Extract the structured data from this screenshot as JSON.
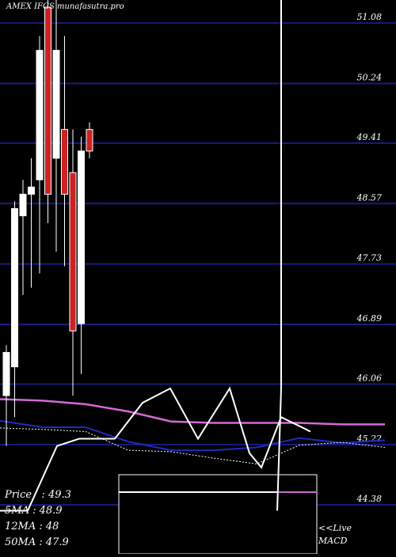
{
  "header": {
    "exchange": "AMEX",
    "symbol": "IFGS",
    "site": "munafasutra.pro"
  },
  "colors": {
    "background": "#000000",
    "grid": "#1a1a80",
    "up_candle": "#ffffff",
    "down_candle": "#cc2222",
    "wick": "#ffffff",
    "ma5": "#ffffff",
    "ma12": "#1f2bbf",
    "ma50": "#d36bd3",
    "price_line": "#ffffff",
    "macd": "#ffffff"
  },
  "legend": {
    "price": "Price   : 49.3",
    "ma5": "5MA : 48.9",
    "ma12": "12MA : 48",
    "ma50": "50MA : 47.9"
  },
  "macd_label": {
    "line1": "<<Live",
    "line2": "MACD"
  },
  "chart_data": {
    "type": "candlestick",
    "ylim": [
      43.7,
      51.4
    ],
    "y_ticks": [
      "51.08",
      "50.24",
      "49.41",
      "48.57",
      "47.73",
      "46.89",
      "46.06",
      "45.22",
      "44.38"
    ],
    "candles": [
      {
        "o": 45.9,
        "h": 46.6,
        "l": 45.2,
        "c": 46.5,
        "dir": "up"
      },
      {
        "o": 46.3,
        "h": 48.6,
        "l": 45.6,
        "c": 48.5,
        "dir": "up"
      },
      {
        "o": 48.4,
        "h": 48.9,
        "l": 47.3,
        "c": 48.7,
        "dir": "up"
      },
      {
        "o": 48.7,
        "h": 49.2,
        "l": 47.4,
        "c": 48.8,
        "dir": "up"
      },
      {
        "o": 48.9,
        "h": 50.9,
        "l": 47.6,
        "c": 50.7,
        "dir": "up"
      },
      {
        "o": 51.3,
        "h": 51.4,
        "l": 48.3,
        "c": 48.7,
        "dir": "down"
      },
      {
        "o": 49.2,
        "h": 51.4,
        "l": 47.9,
        "c": 50.7,
        "dir": "up"
      },
      {
        "o": 49.6,
        "h": 50.9,
        "l": 47.7,
        "c": 48.7,
        "dir": "down"
      },
      {
        "o": 49.0,
        "h": 49.6,
        "l": 45.9,
        "c": 46.8,
        "dir": "down"
      },
      {
        "o": 46.9,
        "h": 49.5,
        "l": 46.2,
        "c": 49.3,
        "dir": "up"
      },
      {
        "o": 49.6,
        "h": 49.7,
        "l": 49.2,
        "c": 49.3,
        "dir": "down"
      }
    ],
    "series": [
      {
        "id": "ma50",
        "values": [
          45.85,
          45.83,
          45.78,
          45.68,
          45.54,
          45.52,
          45.52,
          45.52,
          45.5,
          45.5
        ]
      },
      {
        "id": "ma12",
        "values": [
          45.55,
          45.46,
          45.46,
          45.26,
          45.14,
          45.14,
          45.18,
          45.31,
          45.24,
          45.28
        ]
      },
      {
        "id": "ma5",
        "values": [
          45.45,
          45.43,
          45.4,
          45.14,
          45.12,
          45.03,
          44.95,
          45.21,
          45.25,
          45.18
        ]
      },
      {
        "id": "price_line",
        "values": [
          44.3,
          44.3,
          45.2,
          45.3,
          45.3,
          45.8,
          46.0,
          45.3,
          46.0,
          45.1,
          44.9,
          45.6,
          45.4
        ]
      },
      {
        "id": "macd",
        "values": [
          51.4,
          46.0,
          44.3
        ]
      }
    ]
  }
}
